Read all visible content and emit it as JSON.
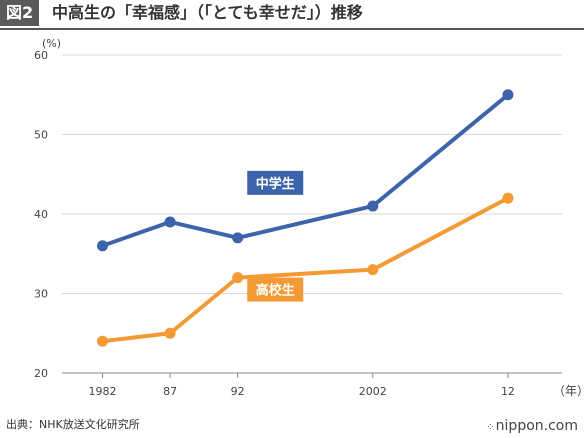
{
  "header": {
    "figure_label": "図2",
    "title": "中高生の「幸福感」（「とても幸せだ」）推移"
  },
  "chart_data": {
    "type": "line",
    "title": "中高生の「幸福感」（「とても幸せだ」）推移",
    "categories": [
      "1982",
      "87",
      "92",
      "2002",
      "12"
    ],
    "x": [
      1982,
      1987,
      1992,
      2002,
      2012
    ],
    "y_unit_label": "(%)",
    "x_unit_label": "（年）",
    "yticks": [
      20,
      30,
      40,
      50,
      60
    ],
    "ylim": [
      20,
      60
    ],
    "xlim": [
      1979,
      2016
    ],
    "grid": "horizontal",
    "series": [
      {
        "name": "中学生",
        "values": [
          36,
          39,
          37,
          41,
          55
        ],
        "color": "#3d64aa"
      },
      {
        "name": "高校生",
        "values": [
          24,
          25,
          32,
          33,
          42
        ],
        "color": "#f39a35"
      }
    ]
  },
  "footer": {
    "source": "出典：NHK放送文化研究所",
    "logo": "nippon.com",
    "logo_dots": "⁘"
  }
}
